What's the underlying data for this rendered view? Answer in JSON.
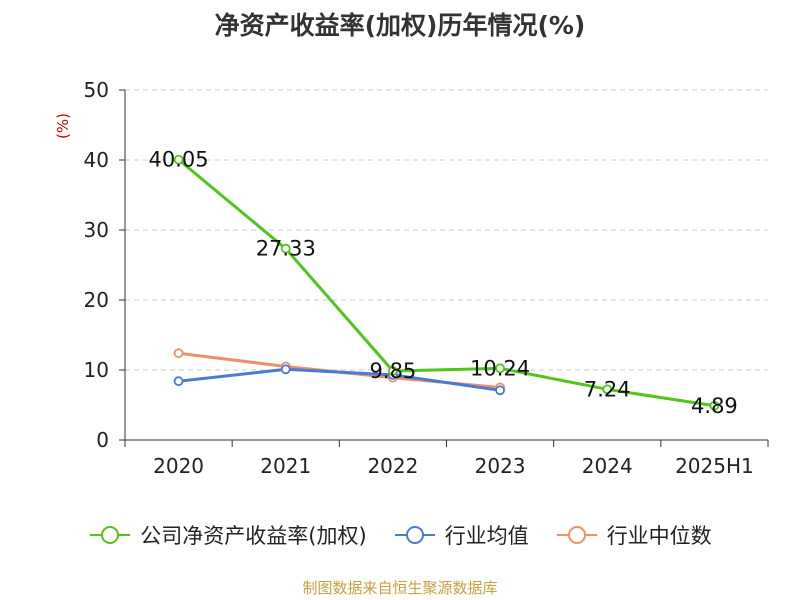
{
  "title": "净资产收益率(加权)历年情况(%)",
  "source": "制图数据来自恒生聚源数据库",
  "colors": {
    "company": "#52c41a",
    "industry_avg": "#4a7bd4",
    "industry_median": "#f0906a",
    "unit": "#cc0000",
    "grid": "#cccccc"
  },
  "chart_data": {
    "type": "line",
    "title": "净资产收益率(加权)历年情况(%)",
    "ylabel": "(%)",
    "xlabel": "",
    "categories": [
      "2020",
      "2021",
      "2022",
      "2023",
      "2024",
      "2025H1"
    ],
    "ylim": [
      0,
      50
    ],
    "yticks": [
      0,
      10,
      20,
      30,
      40,
      50
    ],
    "grid": true,
    "legend": "bottom",
    "series": [
      {
        "name": "公司净资产收益率(加权)",
        "values": [
          40.05,
          27.33,
          9.85,
          10.24,
          7.24,
          4.89
        ],
        "labels": [
          "40.05",
          "27.33",
          "9.85",
          "10.24",
          "7.24",
          "4.89"
        ],
        "color": "#52c41a"
      },
      {
        "name": "行业均值",
        "values": [
          8.4,
          10.1,
          9.3,
          7.1,
          null,
          null
        ],
        "labels": [],
        "color": "#4a7bd4"
      },
      {
        "name": "行业中位数",
        "values": [
          12.4,
          10.5,
          8.9,
          7.5,
          null,
          null
        ],
        "labels": [],
        "color": "#f0906a"
      }
    ]
  }
}
